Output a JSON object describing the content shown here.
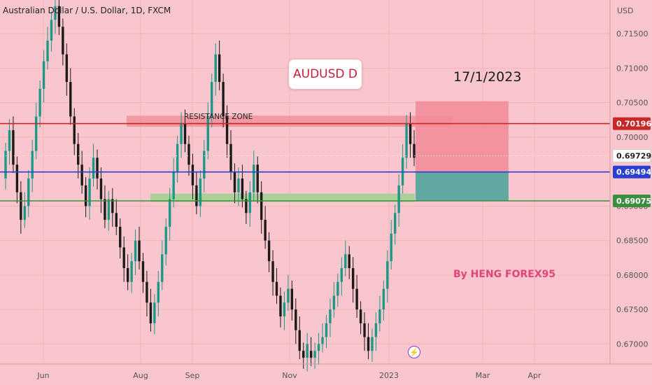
{
  "header": {
    "symbol": "Australian Dollar / U.S. Dollar, 1D, FXCM"
  },
  "annotations": {
    "title": "AUDUSD D",
    "date": "17/1/2023",
    "author": "By HENG FOREX95",
    "resistance_label": "RESISTANCE ZONE"
  },
  "icons": {
    "flash": "lightning-bolt-icon"
  },
  "colors": {
    "background": "#f8c6cc",
    "up_candle": "#1a9988",
    "down_candle": "#1a1a1a",
    "resistance_line": "#c62828",
    "blue_line": "#2a3fd0",
    "green_line": "#3e8e41",
    "stop_zone": "#f28a96",
    "target_zone": "#5aa79f"
  },
  "chart_data": {
    "type": "candlestick",
    "currency": "USD",
    "y_range": [
      0.6675,
      0.7195
    ],
    "y_ticks": [
      "0.71500",
      "0.71000",
      "0.70500",
      "0.70000",
      "0.69500",
      "0.69000",
      "0.68500",
      "0.68000",
      "0.67500",
      "0.67000"
    ],
    "x_ticks": [
      "Jun",
      "Aug",
      "Sep",
      "Nov",
      "2023",
      "Mar",
      "Apr"
    ],
    "price_levels": [
      {
        "name": "resistance",
        "value": 0.70196,
        "label": "0.70196"
      },
      {
        "name": "last",
        "value": 0.69729,
        "label": "0.69729"
      },
      {
        "name": "blue",
        "value": 0.69494,
        "label": "0.69494"
      },
      {
        "name": "green",
        "value": 0.69075,
        "label": "0.69075"
      }
    ],
    "resistance_zone": {
      "low": 0.7015,
      "high": 0.7031
    },
    "support_zone": {
      "low": 0.6906,
      "high": 0.6918
    },
    "position": {
      "entry": 0.69494,
      "stop": 0.7052,
      "target": 0.69075
    },
    "candles": [
      [
        0.694,
        0.698
      ],
      [
        0.698,
        0.701
      ],
      [
        0.701,
        0.696
      ],
      [
        0.696,
        0.692
      ],
      [
        0.692,
        0.688
      ],
      [
        0.688,
        0.69
      ],
      [
        0.69,
        0.694
      ],
      [
        0.694,
        0.698
      ],
      [
        0.698,
        0.703
      ],
      [
        0.703,
        0.707
      ],
      [
        0.707,
        0.711
      ],
      [
        0.711,
        0.714
      ],
      [
        0.714,
        0.717
      ],
      [
        0.717,
        0.719
      ],
      [
        0.719,
        0.716
      ],
      [
        0.716,
        0.712
      ],
      [
        0.712,
        0.708
      ],
      [
        0.708,
        0.703
      ],
      [
        0.703,
        0.699
      ],
      [
        0.699,
        0.696
      ],
      [
        0.696,
        0.693
      ],
      [
        0.693,
        0.69
      ],
      [
        0.69,
        0.694
      ],
      [
        0.694,
        0.697
      ],
      [
        0.697,
        0.694
      ],
      [
        0.694,
        0.691
      ],
      [
        0.691,
        0.688
      ],
      [
        0.688,
        0.691
      ],
      [
        0.691,
        0.689
      ],
      [
        0.689,
        0.687
      ],
      [
        0.687,
        0.684
      ],
      [
        0.684,
        0.681
      ],
      [
        0.681,
        0.679
      ],
      [
        0.679,
        0.682
      ],
      [
        0.682,
        0.685
      ],
      [
        0.685,
        0.682
      ],
      [
        0.682,
        0.679
      ],
      [
        0.679,
        0.676
      ],
      [
        0.676,
        0.673
      ],
      [
        0.673,
        0.676
      ],
      [
        0.676,
        0.679
      ],
      [
        0.679,
        0.683
      ],
      [
        0.683,
        0.687
      ],
      [
        0.687,
        0.691
      ],
      [
        0.691,
        0.695
      ],
      [
        0.695,
        0.699
      ],
      [
        0.699,
        0.702
      ],
      [
        0.702,
        0.699
      ],
      [
        0.699,
        0.696
      ],
      [
        0.696,
        0.693
      ],
      [
        0.693,
        0.69
      ],
      [
        0.69,
        0.694
      ],
      [
        0.694,
        0.698
      ],
      [
        0.698,
        0.703
      ],
      [
        0.703,
        0.708
      ],
      [
        0.708,
        0.712
      ],
      [
        0.712,
        0.708
      ],
      [
        0.708,
        0.703
      ],
      [
        0.703,
        0.699
      ],
      [
        0.699,
        0.695
      ],
      [
        0.695,
        0.692
      ],
      [
        0.692,
        0.694
      ],
      [
        0.694,
        0.691
      ],
      [
        0.691,
        0.689
      ],
      [
        0.689,
        0.692
      ],
      [
        0.692,
        0.696
      ],
      [
        0.696,
        0.692
      ],
      [
        0.692,
        0.688
      ],
      [
        0.688,
        0.685
      ],
      [
        0.685,
        0.682
      ],
      [
        0.682,
        0.679
      ],
      [
        0.679,
        0.677
      ],
      [
        0.677,
        0.674
      ],
      [
        0.674,
        0.676
      ],
      [
        0.676,
        0.678
      ],
      [
        0.678,
        0.675
      ],
      [
        0.675,
        0.672
      ],
      [
        0.672,
        0.669
      ],
      [
        0.669,
        0.668
      ],
      [
        0.668,
        0.67
      ],
      [
        0.669,
        0.668
      ],
      [
        0.668,
        0.669
      ],
      [
        0.669,
        0.67
      ],
      [
        0.67,
        0.671
      ],
      [
        0.671,
        0.673
      ],
      [
        0.673,
        0.675
      ],
      [
        0.675,
        0.677
      ],
      [
        0.677,
        0.679
      ],
      [
        0.679,
        0.681
      ],
      [
        0.681,
        0.683
      ],
      [
        0.683,
        0.681
      ],
      [
        0.681,
        0.678
      ],
      [
        0.678,
        0.675
      ],
      [
        0.675,
        0.673
      ],
      [
        0.673,
        0.671
      ],
      [
        0.671,
        0.669
      ],
      [
        0.669,
        0.671
      ],
      [
        0.671,
        0.673
      ],
      [
        0.673,
        0.675
      ],
      [
        0.675,
        0.678
      ],
      [
        0.678,
        0.682
      ],
      [
        0.682,
        0.686
      ],
      [
        0.686,
        0.689
      ],
      [
        0.689,
        0.693
      ],
      [
        0.693,
        0.697
      ],
      [
        0.697,
        0.702
      ],
      [
        0.702,
        0.699
      ],
      [
        0.699,
        0.697
      ]
    ]
  }
}
